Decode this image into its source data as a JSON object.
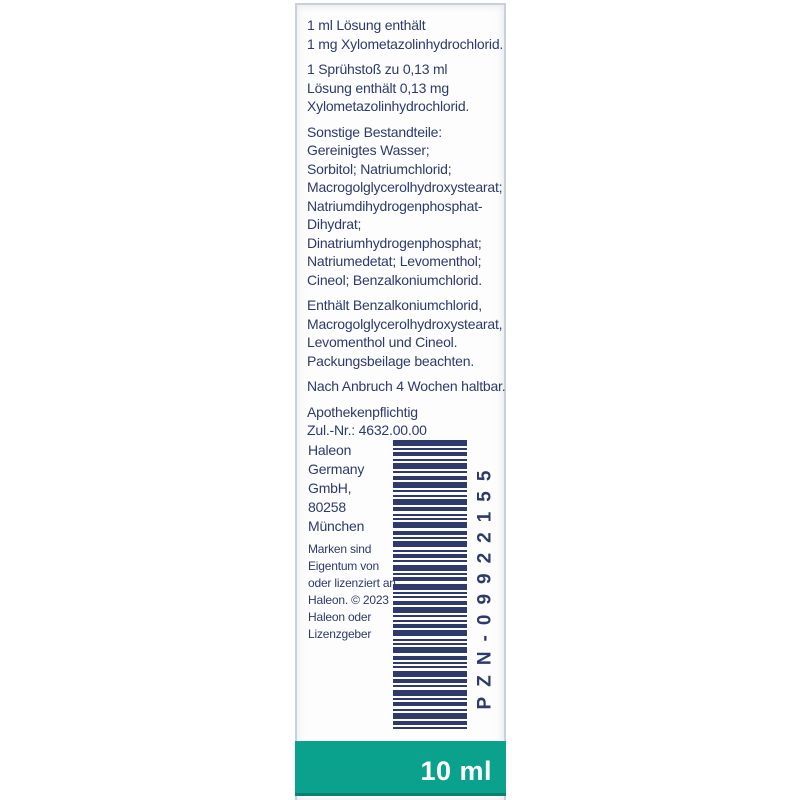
{
  "package": {
    "ingredients_paragraphs": [
      {
        "lines": [
          "1 ml Lösung enthält",
          "1 mg Xylometazolinhydrochlorid."
        ]
      },
      {
        "lines": [
          "1 Sprühstoß zu 0,13 ml",
          "Lösung enthält 0,13 mg",
          "Xylometazolinhydrochlorid."
        ]
      },
      {
        "lines": [
          "Sonstige Bestandteile:",
          "Gereinigtes Wasser;",
          "Sorbitol; Natriumchlorid;",
          "Macrogolglycerolhydroxystearat;",
          "Natriumdihydrogenphosphat-",
          "Dihydrat;",
          "Dinatriumhydrogenphosphat;",
          "Natriumedetat; Levomenthol;",
          "Cineol; Benzalkoniumchlorid."
        ]
      },
      {
        "lines": [
          "Enthält Benzalkoniumchlorid,",
          "Macrogolglycerolhydroxystearat,",
          "Levomenthol und Cineol.",
          "Packungsbeilage beachten."
        ]
      },
      {
        "lines": [
          "Nach Anbruch 4 Wochen haltbar."
        ]
      },
      {
        "lines": [
          "Apothekenpflichtig",
          "Zul.-Nr.: 4632.00.00"
        ]
      }
    ],
    "manufacturer": {
      "lines": [
        "Haleon",
        "Germany",
        "GmbH,",
        "80258",
        "München"
      ]
    },
    "legal": {
      "lines": [
        "Marken sind",
        "Eigentum von",
        "oder lizenziert an",
        "Haleon. © 2023",
        "Haleon oder",
        "Lizenzgeber"
      ]
    },
    "barcode": {
      "label": "PZN-09922155",
      "pattern": [
        [
          6,
          2
        ],
        [
          2,
          2
        ],
        [
          4,
          3
        ],
        [
          2,
          2
        ],
        [
          6,
          2
        ],
        [
          2,
          3
        ],
        [
          4,
          2
        ],
        [
          6,
          2
        ],
        [
          2,
          3
        ],
        [
          2,
          2
        ],
        [
          6,
          2
        ],
        [
          4,
          3
        ],
        [
          2,
          2
        ],
        [
          2,
          2
        ],
        [
          6,
          3
        ],
        [
          4,
          2
        ],
        [
          2,
          2
        ],
        [
          6,
          3
        ],
        [
          2,
          2
        ],
        [
          4,
          2
        ],
        [
          2,
          3
        ],
        [
          6,
          2
        ],
        [
          2,
          2
        ],
        [
          4,
          3
        ],
        [
          6,
          2
        ],
        [
          2,
          2
        ],
        [
          2,
          3
        ],
        [
          4,
          2
        ],
        [
          6,
          2
        ],
        [
          2,
          3
        ],
        [
          2,
          2
        ],
        [
          4,
          2
        ],
        [
          6,
          3
        ],
        [
          2,
          2
        ],
        [
          2,
          2
        ],
        [
          6,
          3
        ],
        [
          4,
          2
        ],
        [
          2,
          2
        ],
        [
          2,
          3
        ],
        [
          6,
          2
        ],
        [
          4,
          2
        ],
        [
          2,
          3
        ],
        [
          6,
          2
        ],
        [
          2,
          2
        ],
        [
          4,
          3
        ],
        [
          2,
          2
        ],
        [
          6,
          2
        ],
        [
          4,
          2
        ],
        [
          2,
          0
        ]
      ]
    },
    "volume_label": "10 ml",
    "colors": {
      "text_navy": "#2d3a6b",
      "teal": "#0aa28c",
      "teal_dark": "#0b7f70",
      "panel_border": "#cad0d9"
    }
  }
}
